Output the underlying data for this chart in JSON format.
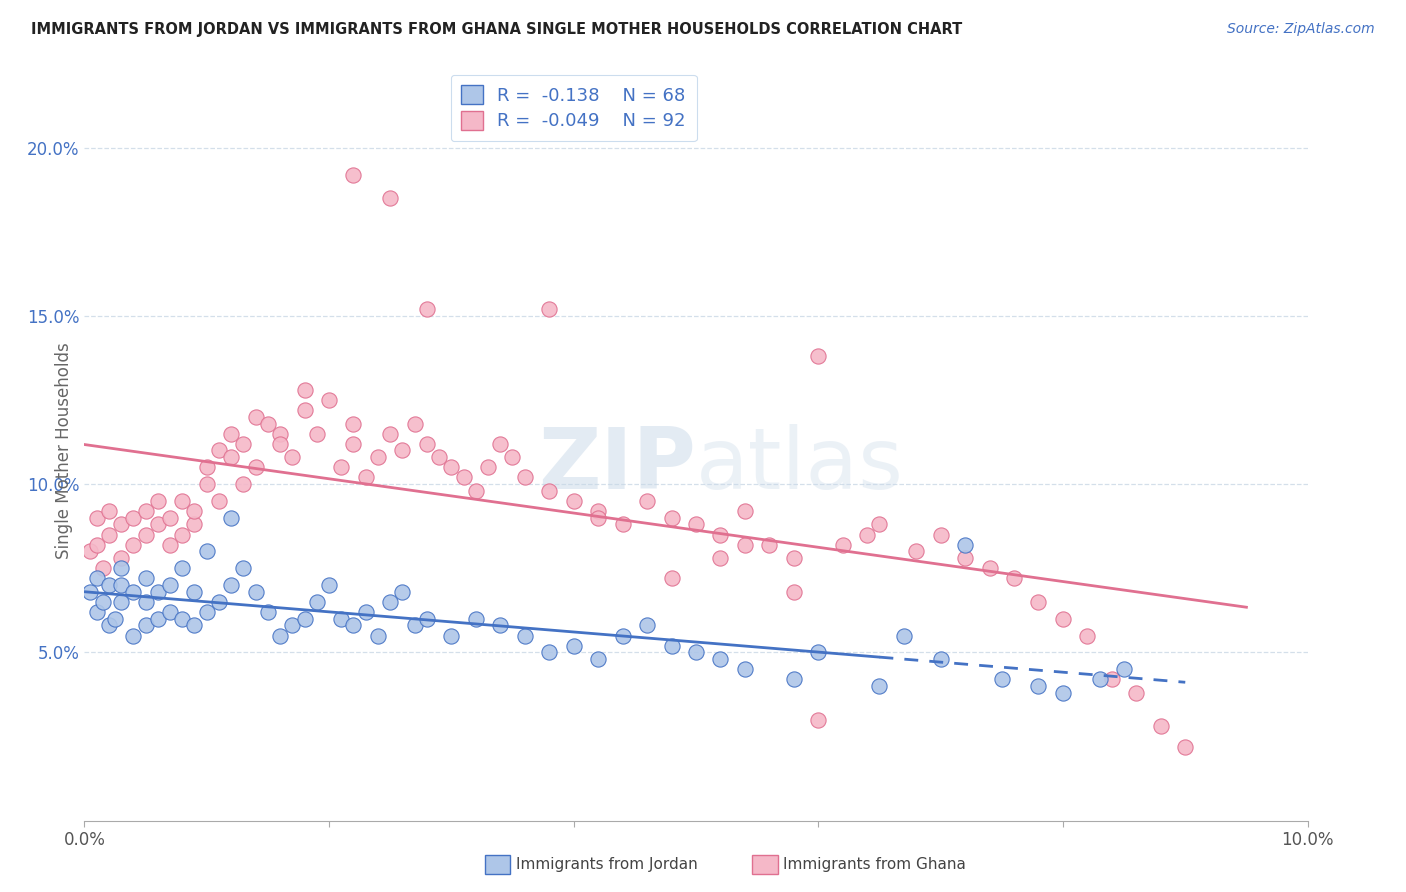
{
  "title": "IMMIGRANTS FROM JORDAN VS IMMIGRANTS FROM GHANA SINGLE MOTHER HOUSEHOLDS CORRELATION CHART",
  "source": "Source: ZipAtlas.com",
  "ylabel": "Single Mother Households",
  "xlim": [
    0.0,
    0.1
  ],
  "ylim": [
    0.0,
    0.22
  ],
  "yticks": [
    0.05,
    0.1,
    0.15,
    0.2
  ],
  "ytick_labels": [
    "5.0%",
    "10.0%",
    "15.0%",
    "20.0%"
  ],
  "xtick_positions": [
    0.0,
    0.02,
    0.04,
    0.06,
    0.08,
    0.1
  ],
  "xtick_labels": [
    "0.0%",
    "",
    "",
    "",
    "",
    "10.0%"
  ],
  "jordan_R": -0.138,
  "jordan_N": 68,
  "ghana_R": -0.049,
  "ghana_N": 92,
  "jordan_color": "#aec6e8",
  "ghana_color": "#f5b8c8",
  "jordan_line_color": "#4472c4",
  "ghana_line_color": "#e07090",
  "background_color": "#ffffff",
  "grid_color": "#d0dce8",
  "title_color": "#222222",
  "source_color": "#4472c4",
  "legend_R_color": "#e05070",
  "legend_N_color": "#4472c4",
  "watermark": "ZIPatlas",
  "jordan_x": [
    0.0005,
    0.001,
    0.001,
    0.0015,
    0.002,
    0.002,
    0.0025,
    0.003,
    0.003,
    0.003,
    0.004,
    0.004,
    0.005,
    0.005,
    0.005,
    0.006,
    0.006,
    0.007,
    0.007,
    0.008,
    0.008,
    0.009,
    0.009,
    0.01,
    0.01,
    0.011,
    0.012,
    0.012,
    0.013,
    0.014,
    0.015,
    0.016,
    0.017,
    0.018,
    0.019,
    0.02,
    0.021,
    0.022,
    0.023,
    0.024,
    0.025,
    0.026,
    0.027,
    0.028,
    0.03,
    0.032,
    0.034,
    0.036,
    0.038,
    0.04,
    0.042,
    0.044,
    0.046,
    0.048,
    0.05,
    0.052,
    0.054,
    0.058,
    0.06,
    0.065,
    0.067,
    0.07,
    0.072,
    0.075,
    0.078,
    0.08,
    0.083,
    0.085
  ],
  "jordan_y": [
    0.068,
    0.062,
    0.072,
    0.065,
    0.058,
    0.07,
    0.06,
    0.065,
    0.07,
    0.075,
    0.055,
    0.068,
    0.058,
    0.065,
    0.072,
    0.06,
    0.068,
    0.062,
    0.07,
    0.06,
    0.075,
    0.058,
    0.068,
    0.062,
    0.08,
    0.065,
    0.07,
    0.09,
    0.075,
    0.068,
    0.062,
    0.055,
    0.058,
    0.06,
    0.065,
    0.07,
    0.06,
    0.058,
    0.062,
    0.055,
    0.065,
    0.068,
    0.058,
    0.06,
    0.055,
    0.06,
    0.058,
    0.055,
    0.05,
    0.052,
    0.048,
    0.055,
    0.058,
    0.052,
    0.05,
    0.048,
    0.045,
    0.042,
    0.05,
    0.04,
    0.055,
    0.048,
    0.082,
    0.042,
    0.04,
    0.038,
    0.042,
    0.045
  ],
  "ghana_x": [
    0.0005,
    0.001,
    0.001,
    0.0015,
    0.002,
    0.002,
    0.003,
    0.003,
    0.004,
    0.004,
    0.005,
    0.005,
    0.006,
    0.006,
    0.007,
    0.007,
    0.008,
    0.008,
    0.009,
    0.009,
    0.01,
    0.01,
    0.011,
    0.011,
    0.012,
    0.012,
    0.013,
    0.013,
    0.014,
    0.014,
    0.015,
    0.016,
    0.016,
    0.017,
    0.018,
    0.018,
    0.019,
    0.02,
    0.021,
    0.022,
    0.022,
    0.023,
    0.024,
    0.025,
    0.026,
    0.027,
    0.028,
    0.029,
    0.03,
    0.031,
    0.032,
    0.033,
    0.034,
    0.035,
    0.036,
    0.038,
    0.04,
    0.042,
    0.044,
    0.046,
    0.048,
    0.05,
    0.052,
    0.054,
    0.056,
    0.058,
    0.06,
    0.062,
    0.064,
    0.065,
    0.068,
    0.07,
    0.072,
    0.074,
    0.076,
    0.078,
    0.08,
    0.082,
    0.084,
    0.086,
    0.088,
    0.09,
    0.022,
    0.025,
    0.028,
    0.038,
    0.042,
    0.048,
    0.052,
    0.054,
    0.058,
    0.06
  ],
  "ghana_y": [
    0.08,
    0.082,
    0.09,
    0.075,
    0.085,
    0.092,
    0.088,
    0.078,
    0.082,
    0.09,
    0.085,
    0.092,
    0.095,
    0.088,
    0.082,
    0.09,
    0.085,
    0.095,
    0.088,
    0.092,
    0.1,
    0.105,
    0.095,
    0.11,
    0.115,
    0.108,
    0.112,
    0.1,
    0.12,
    0.105,
    0.118,
    0.115,
    0.112,
    0.108,
    0.122,
    0.128,
    0.115,
    0.125,
    0.105,
    0.112,
    0.118,
    0.102,
    0.108,
    0.115,
    0.11,
    0.118,
    0.112,
    0.108,
    0.105,
    0.102,
    0.098,
    0.105,
    0.112,
    0.108,
    0.102,
    0.098,
    0.095,
    0.092,
    0.088,
    0.095,
    0.09,
    0.088,
    0.085,
    0.092,
    0.082,
    0.078,
    0.138,
    0.082,
    0.085,
    0.088,
    0.08,
    0.085,
    0.078,
    0.075,
    0.072,
    0.065,
    0.06,
    0.055,
    0.042,
    0.038,
    0.028,
    0.022,
    0.192,
    0.185,
    0.152,
    0.152,
    0.09,
    0.072,
    0.078,
    0.082,
    0.068,
    0.03
  ]
}
